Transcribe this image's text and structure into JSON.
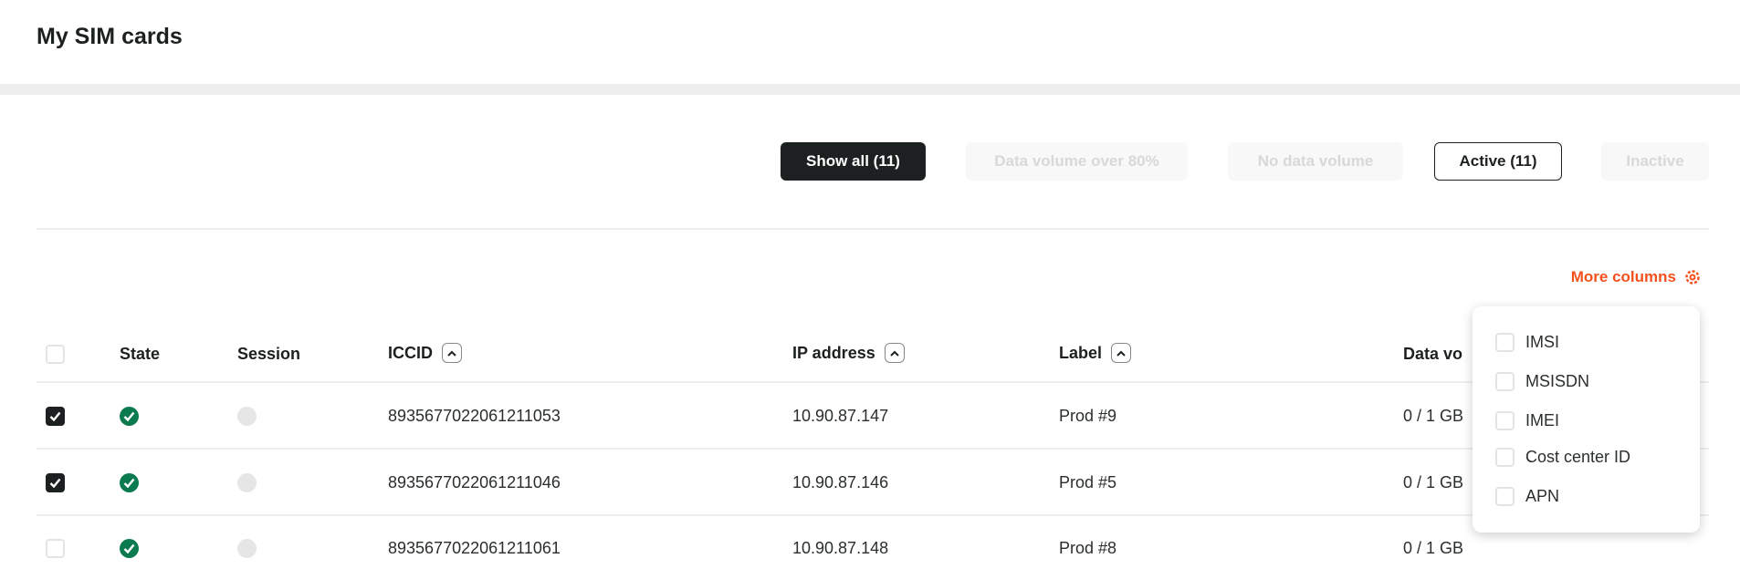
{
  "page": {
    "title": "My SIM cards"
  },
  "filters": [
    {
      "label": "Show all (11)",
      "state": "selected"
    },
    {
      "label": "Data volume over 80%",
      "state": "disabled"
    },
    {
      "label": "No data volume",
      "state": "disabled"
    },
    {
      "label": "Active (11)",
      "state": "outlined"
    },
    {
      "label": "Inactive",
      "state": "disabled"
    }
  ],
  "more_columns": {
    "label": "More columns",
    "icon": "gear-icon",
    "color": "#f4511e"
  },
  "table": {
    "headers": {
      "state": "State",
      "session": "Session",
      "iccid": "ICCID",
      "ip": "IP address",
      "label": "Label",
      "data": "Data vo"
    },
    "rows": [
      {
        "checked": true,
        "iccid": "8935677022061211053",
        "ip": "10.90.87.147",
        "label": "Prod #9",
        "data": "0 / 1 GB"
      },
      {
        "checked": true,
        "iccid": "8935677022061211046",
        "ip": "10.90.87.146",
        "label": "Prod #5",
        "data": "0 / 1 GB"
      },
      {
        "checked": false,
        "iccid": "8935677022061211061",
        "ip": "10.90.87.148",
        "label": "Prod #8",
        "data": "0 / 1 GB"
      }
    ]
  },
  "columns_menu": {
    "items": [
      "IMSI",
      "MSISDN",
      "IMEI",
      "Cost center ID",
      "APN"
    ]
  },
  "colors": {
    "state_active": "#0b7a4f",
    "accent": "#f4511e"
  }
}
